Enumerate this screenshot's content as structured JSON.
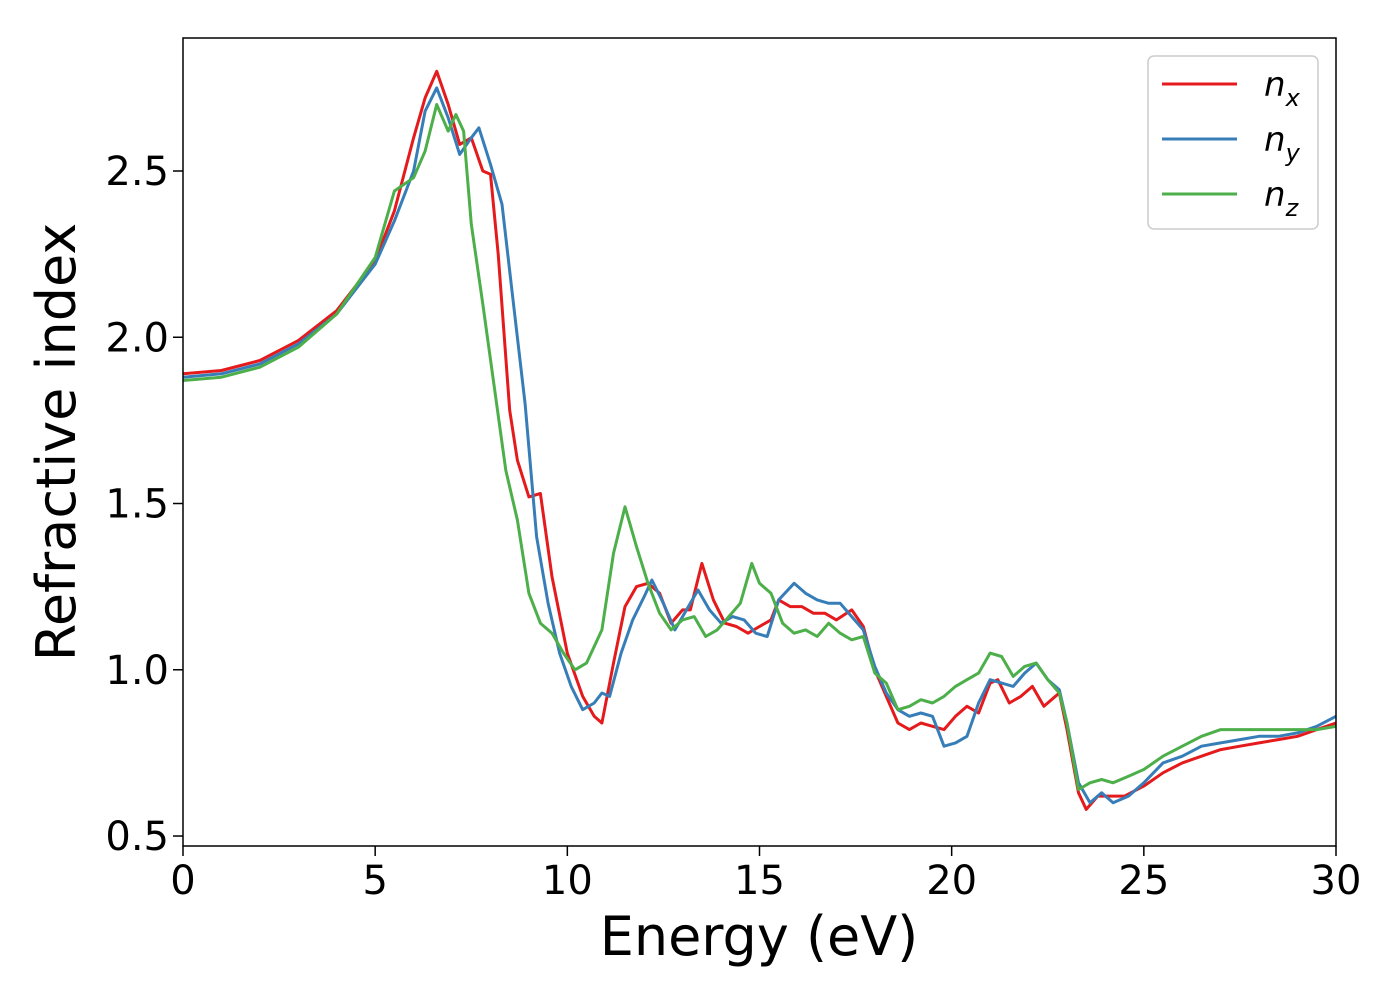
{
  "chart_data": {
    "type": "line",
    "title": "",
    "xlabel": "Energy (eV)",
    "ylabel": "Refractive index",
    "xlim": [
      0,
      30
    ],
    "ylim": [
      0.47,
      2.9
    ],
    "xticks": [
      0,
      5,
      10,
      15,
      20,
      25,
      30
    ],
    "xtick_labels": [
      "0",
      "5",
      "10",
      "15",
      "20",
      "25",
      "30"
    ],
    "yticks": [
      0.5,
      1.0,
      1.5,
      2.0,
      2.5
    ],
    "ytick_labels": [
      "0.5",
      "1.0",
      "1.5",
      "2.0",
      "2.5"
    ],
    "grid": false,
    "legend_position": "top-right",
    "series": [
      {
        "name": "n",
        "subscript": "x",
        "color": "#e41a1c",
        "points": [
          [
            0,
            1.89
          ],
          [
            1,
            1.9
          ],
          [
            2,
            1.93
          ],
          [
            3,
            1.99
          ],
          [
            4,
            2.08
          ],
          [
            5,
            2.23
          ],
          [
            5.5,
            2.38
          ],
          [
            6,
            2.6
          ],
          [
            6.3,
            2.72
          ],
          [
            6.6,
            2.8
          ],
          [
            6.9,
            2.7
          ],
          [
            7.2,
            2.58
          ],
          [
            7.5,
            2.6
          ],
          [
            7.8,
            2.5
          ],
          [
            8.0,
            2.49
          ],
          [
            8.2,
            2.25
          ],
          [
            8.5,
            1.78
          ],
          [
            8.7,
            1.63
          ],
          [
            9.0,
            1.52
          ],
          [
            9.3,
            1.53
          ],
          [
            9.6,
            1.28
          ],
          [
            10.0,
            1.05
          ],
          [
            10.4,
            0.92
          ],
          [
            10.7,
            0.86
          ],
          [
            10.9,
            0.84
          ],
          [
            11.2,
            1.02
          ],
          [
            11.5,
            1.19
          ],
          [
            11.8,
            1.25
          ],
          [
            12.1,
            1.26
          ],
          [
            12.4,
            1.23
          ],
          [
            12.7,
            1.14
          ],
          [
            13.0,
            1.18
          ],
          [
            13.2,
            1.18
          ],
          [
            13.5,
            1.32
          ],
          [
            13.8,
            1.21
          ],
          [
            14.1,
            1.14
          ],
          [
            14.4,
            1.13
          ],
          [
            14.7,
            1.11
          ],
          [
            15.0,
            1.13
          ],
          [
            15.3,
            1.15
          ],
          [
            15.5,
            1.21
          ],
          [
            15.8,
            1.19
          ],
          [
            16.1,
            1.19
          ],
          [
            16.4,
            1.17
          ],
          [
            16.7,
            1.17
          ],
          [
            17.0,
            1.15
          ],
          [
            17.4,
            1.18
          ],
          [
            17.7,
            1.13
          ],
          [
            18.0,
            1.0
          ],
          [
            18.3,
            0.92
          ],
          [
            18.6,
            0.84
          ],
          [
            18.9,
            0.82
          ],
          [
            19.2,
            0.84
          ],
          [
            19.5,
            0.83
          ],
          [
            19.8,
            0.82
          ],
          [
            20.1,
            0.86
          ],
          [
            20.4,
            0.89
          ],
          [
            20.7,
            0.87
          ],
          [
            21.0,
            0.96
          ],
          [
            21.2,
            0.97
          ],
          [
            21.5,
            0.9
          ],
          [
            21.8,
            0.92
          ],
          [
            22.1,
            0.95
          ],
          [
            22.4,
            0.89
          ],
          [
            22.8,
            0.93
          ],
          [
            23.0,
            0.82
          ],
          [
            23.3,
            0.63
          ],
          [
            23.5,
            0.58
          ],
          [
            23.8,
            0.62
          ],
          [
            24.1,
            0.62
          ],
          [
            24.5,
            0.62
          ],
          [
            25.0,
            0.65
          ],
          [
            25.5,
            0.69
          ],
          [
            26.0,
            0.72
          ],
          [
            26.5,
            0.74
          ],
          [
            27.0,
            0.76
          ],
          [
            27.5,
            0.77
          ],
          [
            28.0,
            0.78
          ],
          [
            28.5,
            0.79
          ],
          [
            29.0,
            0.8
          ],
          [
            29.5,
            0.82
          ],
          [
            30.0,
            0.84
          ]
        ]
      },
      {
        "name": "n",
        "subscript": "y",
        "color": "#377eb8",
        "points": [
          [
            0,
            1.88
          ],
          [
            1,
            1.89
          ],
          [
            2,
            1.92
          ],
          [
            3,
            1.98
          ],
          [
            4,
            2.07
          ],
          [
            5,
            2.22
          ],
          [
            5.5,
            2.35
          ],
          [
            6,
            2.5
          ],
          [
            6.3,
            2.68
          ],
          [
            6.6,
            2.75
          ],
          [
            6.9,
            2.66
          ],
          [
            7.2,
            2.55
          ],
          [
            7.5,
            2.6
          ],
          [
            7.7,
            2.63
          ],
          [
            8.0,
            2.52
          ],
          [
            8.3,
            2.4
          ],
          [
            8.6,
            2.1
          ],
          [
            8.9,
            1.8
          ],
          [
            9.2,
            1.4
          ],
          [
            9.5,
            1.2
          ],
          [
            9.8,
            1.05
          ],
          [
            10.1,
            0.95
          ],
          [
            10.4,
            0.88
          ],
          [
            10.7,
            0.9
          ],
          [
            10.9,
            0.93
          ],
          [
            11.1,
            0.92
          ],
          [
            11.4,
            1.05
          ],
          [
            11.7,
            1.15
          ],
          [
            12.0,
            1.22
          ],
          [
            12.2,
            1.27
          ],
          [
            12.5,
            1.2
          ],
          [
            12.8,
            1.12
          ],
          [
            13.1,
            1.18
          ],
          [
            13.4,
            1.24
          ],
          [
            13.7,
            1.18
          ],
          [
            14.0,
            1.14
          ],
          [
            14.3,
            1.16
          ],
          [
            14.6,
            1.15
          ],
          [
            14.9,
            1.11
          ],
          [
            15.2,
            1.1
          ],
          [
            15.5,
            1.21
          ],
          [
            15.9,
            1.26
          ],
          [
            16.2,
            1.23
          ],
          [
            16.5,
            1.21
          ],
          [
            16.8,
            1.2
          ],
          [
            17.1,
            1.2
          ],
          [
            17.4,
            1.16
          ],
          [
            17.7,
            1.12
          ],
          [
            18.0,
            1.01
          ],
          [
            18.3,
            0.93
          ],
          [
            18.6,
            0.88
          ],
          [
            18.9,
            0.86
          ],
          [
            19.2,
            0.87
          ],
          [
            19.5,
            0.86
          ],
          [
            19.8,
            0.77
          ],
          [
            20.1,
            0.78
          ],
          [
            20.4,
            0.8
          ],
          [
            20.7,
            0.9
          ],
          [
            21.0,
            0.97
          ],
          [
            21.3,
            0.96
          ],
          [
            21.6,
            0.95
          ],
          [
            21.9,
            0.99
          ],
          [
            22.2,
            1.02
          ],
          [
            22.5,
            0.97
          ],
          [
            22.8,
            0.94
          ],
          [
            23.0,
            0.84
          ],
          [
            23.3,
            0.66
          ],
          [
            23.6,
            0.6
          ],
          [
            23.9,
            0.63
          ],
          [
            24.2,
            0.6
          ],
          [
            24.6,
            0.62
          ],
          [
            25.0,
            0.66
          ],
          [
            25.5,
            0.72
          ],
          [
            26.0,
            0.74
          ],
          [
            26.5,
            0.77
          ],
          [
            27.0,
            0.78
          ],
          [
            27.5,
            0.79
          ],
          [
            28.0,
            0.8
          ],
          [
            28.5,
            0.8
          ],
          [
            29.0,
            0.81
          ],
          [
            29.5,
            0.83
          ],
          [
            30.0,
            0.86
          ]
        ]
      },
      {
        "name": "n",
        "subscript": "z",
        "color": "#4daf4a",
        "points": [
          [
            0,
            1.87
          ],
          [
            1,
            1.88
          ],
          [
            2,
            1.91
          ],
          [
            3,
            1.97
          ],
          [
            4,
            2.07
          ],
          [
            5,
            2.24
          ],
          [
            5.5,
            2.44
          ],
          [
            6,
            2.48
          ],
          [
            6.3,
            2.56
          ],
          [
            6.6,
            2.7
          ],
          [
            6.9,
            2.62
          ],
          [
            7.1,
            2.67
          ],
          [
            7.3,
            2.62
          ],
          [
            7.5,
            2.34
          ],
          [
            7.8,
            2.1
          ],
          [
            8.1,
            1.85
          ],
          [
            8.4,
            1.6
          ],
          [
            8.7,
            1.45
          ],
          [
            9.0,
            1.23
          ],
          [
            9.3,
            1.14
          ],
          [
            9.6,
            1.11
          ],
          [
            9.9,
            1.05
          ],
          [
            10.2,
            1.0
          ],
          [
            10.5,
            1.02
          ],
          [
            10.9,
            1.12
          ],
          [
            11.2,
            1.35
          ],
          [
            11.5,
            1.49
          ],
          [
            11.8,
            1.37
          ],
          [
            12.1,
            1.26
          ],
          [
            12.4,
            1.17
          ],
          [
            12.7,
            1.12
          ],
          [
            13.0,
            1.15
          ],
          [
            13.3,
            1.16
          ],
          [
            13.6,
            1.1
          ],
          [
            13.9,
            1.12
          ],
          [
            14.2,
            1.16
          ],
          [
            14.5,
            1.2
          ],
          [
            14.8,
            1.32
          ],
          [
            15.0,
            1.26
          ],
          [
            15.3,
            1.23
          ],
          [
            15.6,
            1.14
          ],
          [
            15.9,
            1.11
          ],
          [
            16.2,
            1.12
          ],
          [
            16.5,
            1.1
          ],
          [
            16.8,
            1.14
          ],
          [
            17.1,
            1.11
          ],
          [
            17.4,
            1.09
          ],
          [
            17.7,
            1.1
          ],
          [
            18.0,
            0.99
          ],
          [
            18.3,
            0.96
          ],
          [
            18.6,
            0.88
          ],
          [
            18.9,
            0.89
          ],
          [
            19.2,
            0.91
          ],
          [
            19.5,
            0.9
          ],
          [
            19.8,
            0.92
          ],
          [
            20.1,
            0.95
          ],
          [
            20.4,
            0.97
          ],
          [
            20.7,
            0.99
          ],
          [
            21.0,
            1.05
          ],
          [
            21.3,
            1.04
          ],
          [
            21.6,
            0.98
          ],
          [
            21.9,
            1.01
          ],
          [
            22.2,
            1.02
          ],
          [
            22.5,
            0.97
          ],
          [
            22.8,
            0.93
          ],
          [
            23.0,
            0.84
          ],
          [
            23.3,
            0.64
          ],
          [
            23.6,
            0.66
          ],
          [
            23.9,
            0.67
          ],
          [
            24.2,
            0.66
          ],
          [
            24.6,
            0.68
          ],
          [
            25.0,
            0.7
          ],
          [
            25.5,
            0.74
          ],
          [
            26.0,
            0.77
          ],
          [
            26.5,
            0.8
          ],
          [
            27.0,
            0.82
          ],
          [
            27.5,
            0.82
          ],
          [
            28.0,
            0.82
          ],
          [
            28.5,
            0.82
          ],
          [
            29.0,
            0.82
          ],
          [
            29.5,
            0.82
          ],
          [
            30.0,
            0.83
          ]
        ]
      }
    ]
  }
}
